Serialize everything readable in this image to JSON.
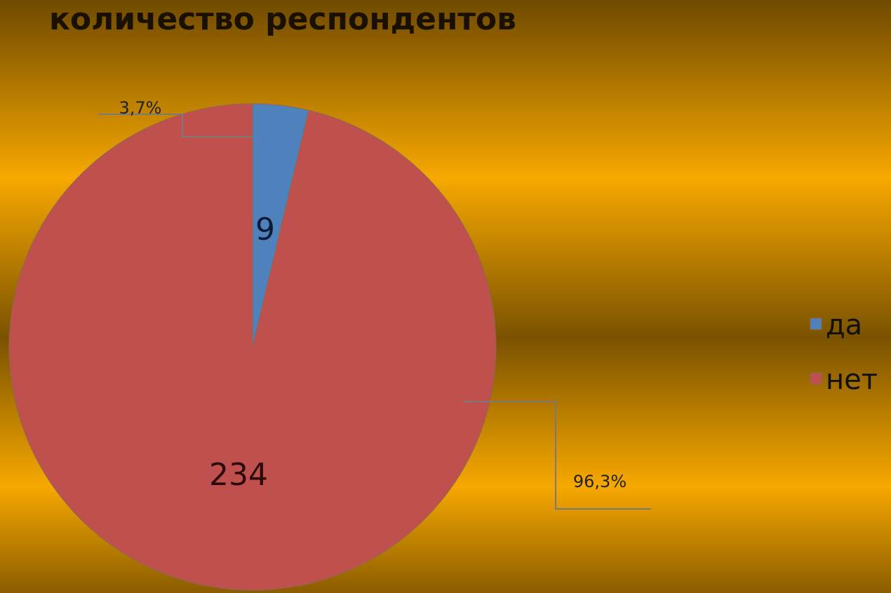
{
  "chart_data": {
    "type": "pie",
    "title": "количество респондентов",
    "categories": [
      "да",
      "нет"
    ],
    "values": [
      9,
      234
    ],
    "percents": [
      3.7,
      96.3
    ],
    "percent_labels": [
      "3,7%",
      "96,3%"
    ],
    "colors": [
      "#4f81bd",
      "#c0504d"
    ],
    "legend": "right"
  }
}
